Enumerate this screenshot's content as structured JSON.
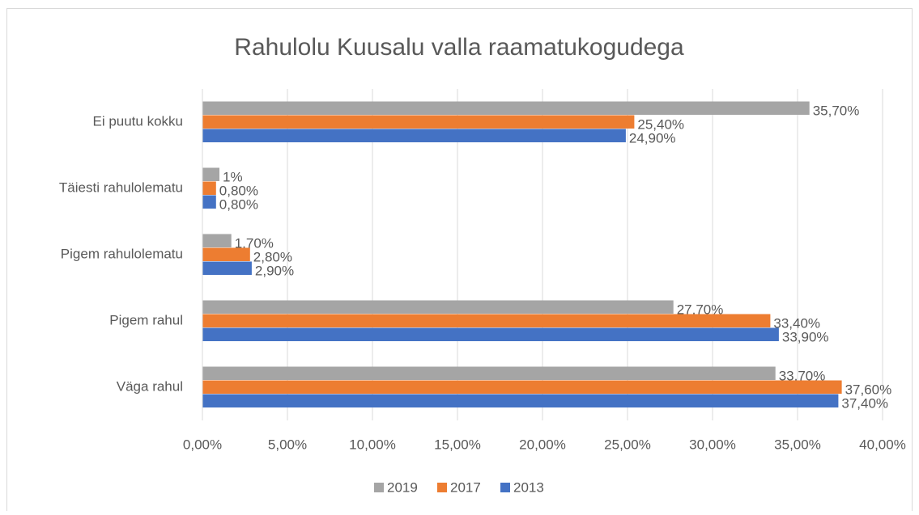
{
  "chart_data": {
    "type": "bar",
    "orientation": "horizontal",
    "title": "Rahulolu Kuusalu valla raamatukogudega",
    "categories": [
      "Ei puutu kokku",
      "Täiesti rahulolematu",
      "Pigem rahulolematu",
      "Pigem rahul",
      "Väga rahul"
    ],
    "series": [
      {
        "name": "2019",
        "color": "#a5a5a5",
        "values": [
          35.7,
          1,
          1.7,
          27.7,
          33.7
        ],
        "value_labels": [
          "35,70%",
          "1%",
          "1,70%",
          "27,70%",
          "33,70%"
        ]
      },
      {
        "name": "2017",
        "color": "#ed7d31",
        "values": [
          25.4,
          0.8,
          2.8,
          33.4,
          37.6
        ],
        "value_labels": [
          "25,40%",
          "0,80%",
          "2,80%",
          "33,40%",
          "37,60%"
        ]
      },
      {
        "name": "2013",
        "color": "#4472c4",
        "values": [
          24.9,
          0.8,
          2.9,
          33.9,
          37.4
        ],
        "value_labels": [
          "24,90%",
          "0,80%",
          "2,90%",
          "33,90%",
          "37,40%"
        ]
      }
    ],
    "xlim": [
      0,
      40
    ],
    "xticks": [
      {
        "value": 0,
        "label": "0,00%"
      },
      {
        "value": 5,
        "label": "5,00%"
      },
      {
        "value": 10,
        "label": "10,00%"
      },
      {
        "value": 15,
        "label": "15,00%"
      },
      {
        "value": 20,
        "label": "20,00%"
      },
      {
        "value": 25,
        "label": "25,00%"
      },
      {
        "value": 30,
        "label": "30,00%"
      },
      {
        "value": 35,
        "label": "35,00%"
      },
      {
        "value": 40,
        "label": "40,00%"
      }
    ],
    "grid": true,
    "legend": "bottom"
  }
}
